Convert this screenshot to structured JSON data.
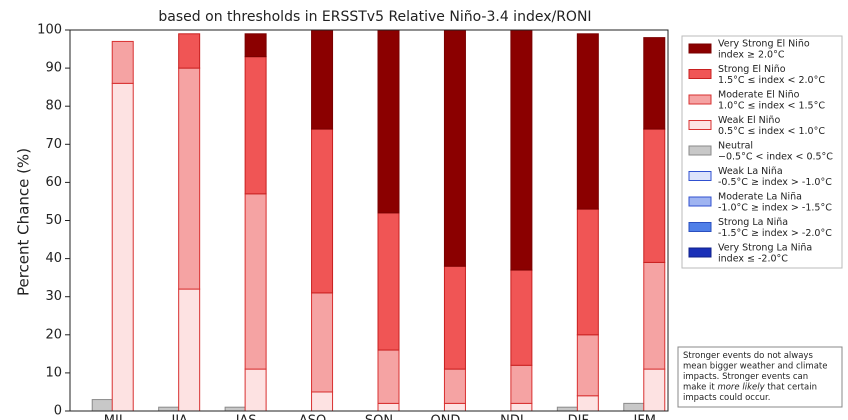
{
  "chart_data": {
    "type": "bar",
    "subtitle": "based on thresholds in ERSSTv5 Relative Niño-3.4 index/RONI",
    "y_label": "Percent Chance (%)",
    "categories": [
      "MJJ",
      "JJA",
      "JAS",
      "ASO",
      "SON",
      "OND",
      "NDJ",
      "DJF",
      "JFM"
    ],
    "ylim": [
      0,
      100
    ],
    "yticks": [
      0,
      10,
      20,
      30,
      40,
      50,
      60,
      70,
      80,
      90,
      100
    ],
    "series": [
      {
        "name": "Very Strong El Niño",
        "definition": "index ≥ 2.0°C",
        "color": "#8b0000",
        "edge": "#7a0000",
        "stack": "right",
        "values": [
          0,
          0,
          6,
          26,
          48,
          62,
          63,
          46,
          24
        ]
      },
      {
        "name": "Strong El Niño",
        "definition": "1.5°C ≤ index < 2.0°C",
        "color": "#f05555",
        "edge": "#c82020",
        "stack": "right",
        "values": [
          0,
          9,
          36,
          43,
          36,
          27,
          25,
          33,
          35
        ]
      },
      {
        "name": "Moderate El Niño",
        "definition": "1.0°C ≤ index < 1.5°C",
        "color": "#f5a3a3",
        "edge": "#d83030",
        "stack": "right",
        "values": [
          11,
          58,
          46,
          26,
          14,
          9,
          10,
          16,
          28
        ]
      },
      {
        "name": "Weak El Niño",
        "definition": "0.5°C ≤ index < 1.0°C",
        "color": "#fde2e2",
        "edge": "#d83030",
        "stack": "right",
        "values": [
          86,
          32,
          11,
          5,
          2,
          2,
          2,
          4,
          11
        ]
      },
      {
        "name": "Neutral",
        "definition": "−0.5°C < index < 0.5°C",
        "color": "#c8c8c8",
        "edge": "#8a8a8a",
        "stack": "left",
        "values": [
          3,
          1,
          1,
          0,
          0,
          0,
          0,
          1,
          2
        ]
      },
      {
        "name": "Weak La Niña",
        "definition": "-0.5°C ≥ index > -1.0°C",
        "color": "#dde3fb",
        "edge": "#3050d0",
        "stack": "left",
        "values": [
          0,
          0,
          0,
          0,
          0,
          0,
          0,
          0,
          0
        ]
      },
      {
        "name": "Moderate La Niña",
        "definition": "-1.0°C ≥ index > -1.5°C",
        "color": "#9fb4f1",
        "edge": "#3050d0",
        "stack": "left",
        "values": [
          0,
          0,
          0,
          0,
          0,
          0,
          0,
          0,
          0
        ]
      },
      {
        "name": "Strong La Niña",
        "definition": "-1.5°C ≥ index > -2.0°C",
        "color": "#4f7fe8",
        "edge": "#2a4fc0",
        "stack": "left",
        "values": [
          0,
          0,
          0,
          0,
          0,
          0,
          0,
          0,
          0
        ]
      },
      {
        "name": "Very Strong La Niña",
        "definition": "index ≤ -2.0°C",
        "color": "#1a30b8",
        "edge": "#10208a",
        "stack": "left",
        "values": [
          0,
          0,
          0,
          0,
          0,
          0,
          0,
          0,
          0
        ]
      }
    ],
    "note": [
      [
        "Stronger events do not always"
      ],
      [
        "mean bigger weather and climate"
      ],
      [
        "impacts. Stronger events can"
      ],
      [
        "make it ",
        "more likely",
        " that certain"
      ],
      [
        "impacts could occur."
      ]
    ]
  }
}
